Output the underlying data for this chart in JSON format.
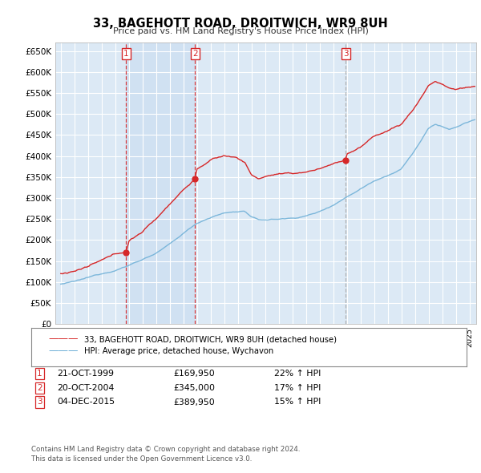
{
  "title": "33, BAGEHOTT ROAD, DROITWICH, WR9 8UH",
  "subtitle": "Price paid vs. HM Land Registry's House Price Index (HPI)",
  "ylabel_ticks": [
    "£0",
    "£50K",
    "£100K",
    "£150K",
    "£200K",
    "£250K",
    "£300K",
    "£350K",
    "£400K",
    "£450K",
    "£500K",
    "£550K",
    "£600K",
    "£650K"
  ],
  "ytick_values": [
    0,
    50000,
    100000,
    150000,
    200000,
    250000,
    300000,
    350000,
    400000,
    450000,
    500000,
    550000,
    600000,
    650000
  ],
  "ylim": [
    0,
    670000
  ],
  "xlim_start": 1994.6,
  "xlim_end": 2025.5,
  "hpi_color": "#6baed6",
  "price_color": "#d62728",
  "background_color": "#dce9f5",
  "background_color2": "#c8ddf0",
  "grid_color": "#ffffff",
  "sale_markers": [
    {
      "year": 1999.8,
      "price": 169950,
      "label": "1",
      "vline_color": "#d62728",
      "vline_style": "--"
    },
    {
      "year": 2004.85,
      "price": 345000,
      "label": "2",
      "vline_color": "#d62728",
      "vline_style": "--"
    },
    {
      "year": 2015.92,
      "price": 389950,
      "label": "3",
      "vline_color": "#aaaaaa",
      "vline_style": "--"
    }
  ],
  "legend_entries": [
    "33, BAGEHOTT ROAD, DROITWICH, WR9 8UH (detached house)",
    "HPI: Average price, detached house, Wychavon"
  ],
  "table_rows": [
    {
      "num": "1",
      "date": "21-OCT-1999",
      "price": "£169,950",
      "hpi": "22% ↑ HPI"
    },
    {
      "num": "2",
      "date": "20-OCT-2004",
      "price": "£345,000",
      "hpi": "17% ↑ HPI"
    },
    {
      "num": "3",
      "date": "04-DEC-2015",
      "price": "£389,950",
      "hpi": "15% ↑ HPI"
    }
  ],
  "footnote": "Contains HM Land Registry data © Crown copyright and database right 2024.\nThis data is licensed under the Open Government Licence v3.0."
}
